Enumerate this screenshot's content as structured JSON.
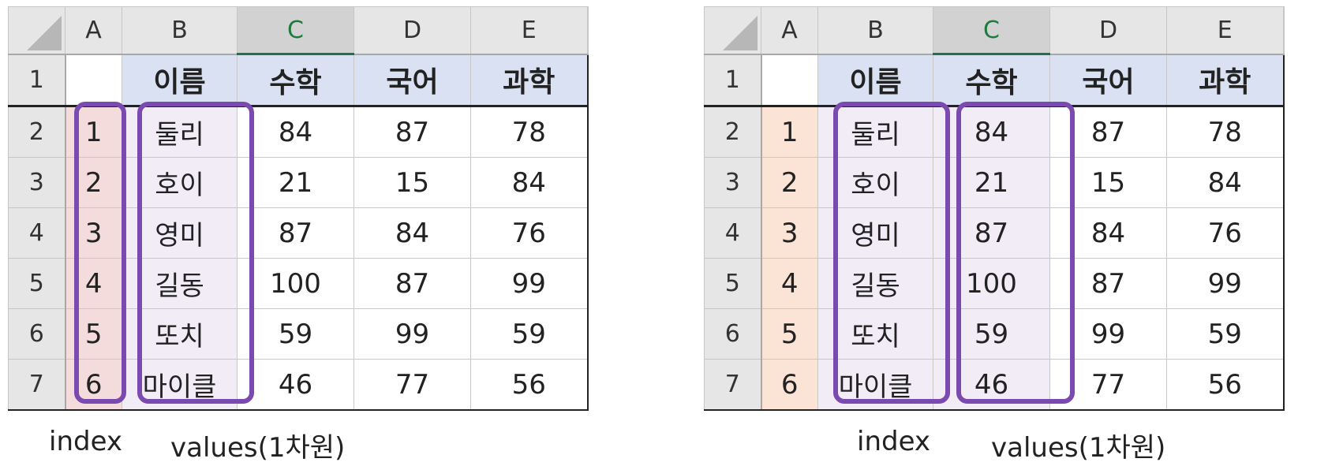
{
  "columns": [
    "A",
    "B",
    "C",
    "D",
    "E"
  ],
  "headers": [
    "이름",
    "수학",
    "국어",
    "과학"
  ],
  "rows": [
    {
      "rownum": "1"
    },
    {
      "rownum": "2",
      "a": "1",
      "b": "둘리",
      "c": "84",
      "d": "87",
      "e": "78"
    },
    {
      "rownum": "3",
      "a": "2",
      "b": "호이",
      "c": "21",
      "d": "15",
      "e": "84"
    },
    {
      "rownum": "4",
      "a": "3",
      "b": "영미",
      "c": "87",
      "d": "84",
      "e": "76"
    },
    {
      "rownum": "5",
      "a": "4",
      "b": "길동",
      "c": "100",
      "d": "87",
      "e": "99"
    },
    {
      "rownum": "6",
      "a": "5",
      "b": "또치",
      "c": "59",
      "d": "99",
      "e": "59"
    },
    {
      "rownum": "7",
      "a": "6",
      "b": "마이클",
      "c": "46",
      "d": "77",
      "e": "56"
    }
  ],
  "left_panel": {
    "captions": {
      "index": "index",
      "values": "values(1차원)"
    },
    "index_fill_color": "#f4dcdc",
    "values_fill_color": "#f1ecf6"
  },
  "right_panel": {
    "captions": {
      "index": "index",
      "values": "values(1차원)"
    },
    "index_fill_color": "#fbe4d6",
    "values_fill_color": "#f1ecf6"
  },
  "colors": {
    "highlight_border": "#7a4ab0",
    "header_fill": "#d9e1f2",
    "selected_column_header": "#d2d2d2",
    "selected_column_text": "#1f7a3e",
    "excel_header_gray": "#e6e6e6"
  }
}
